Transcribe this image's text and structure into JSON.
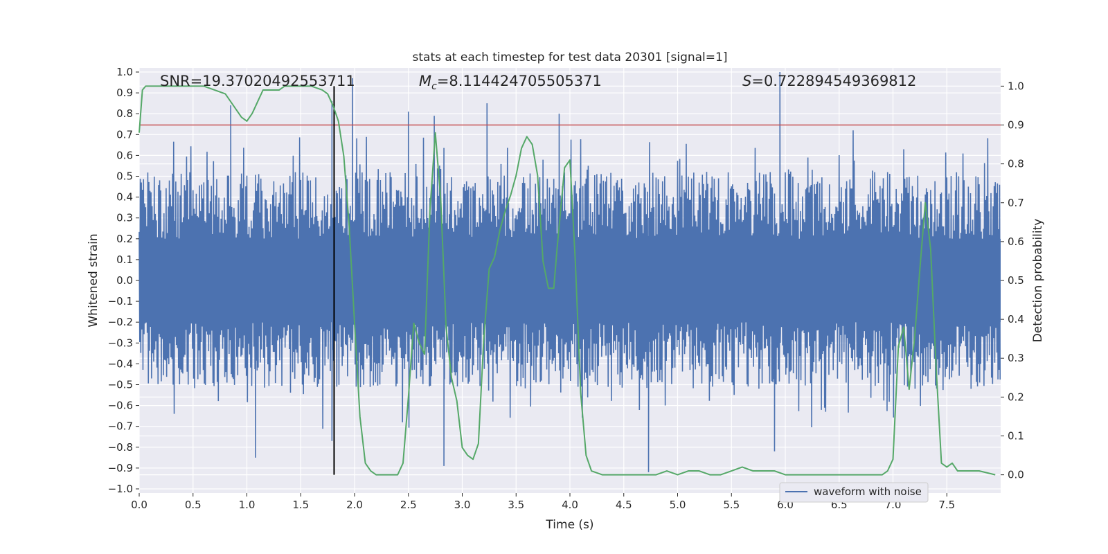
{
  "chart_data": {
    "type": "line",
    "title": "stats at each timestep for test data 20301 [signal=1]",
    "xlabel": "Time (s)",
    "ylabel": "Whitened strain",
    "y2label": "Detection probability",
    "xlim": [
      0.0,
      8.0
    ],
    "ylim": [
      -1.02,
      1.02
    ],
    "y2lim": [
      -0.047,
      1.047
    ],
    "x_ticks": [
      0.0,
      0.5,
      1.0,
      1.5,
      2.0,
      2.5,
      3.0,
      3.5,
      4.0,
      4.5,
      5.0,
      5.5,
      6.0,
      6.5,
      7.0,
      7.5
    ],
    "x_tick_labels": [
      "0.0",
      "0.5",
      "1.0",
      "1.5",
      "2.0",
      "2.5",
      "3.0",
      "3.5",
      "4.0",
      "4.5",
      "5.0",
      "5.5",
      "6.0",
      "6.5",
      "7.0",
      "7.5"
    ],
    "y_ticks": [
      1.0,
      0.9,
      0.8,
      0.7,
      0.6,
      0.5,
      0.4,
      0.3,
      0.2,
      0.1,
      0.0,
      -0.1,
      -0.2,
      -0.3,
      -0.4,
      -0.5,
      -0.6,
      -0.7,
      -0.8,
      -0.9,
      -1.0
    ],
    "y_tick_labels": [
      "1.0",
      "0.9",
      "0.8",
      "0.7",
      "0.6",
      "0.5",
      "0.4",
      "0.3",
      "0.2",
      "0.1",
      "0.0",
      "−0.1",
      "−0.2",
      "−0.3",
      "−0.4",
      "−0.5",
      "−0.6",
      "−0.7",
      "−0.8",
      "−0.9",
      "−1.0"
    ],
    "y2_ticks": [
      1.0,
      0.9,
      0.8,
      0.7,
      0.6,
      0.5,
      0.4,
      0.3,
      0.2,
      0.1,
      0.0
    ],
    "y2_tick_labels": [
      "1.0",
      "0.9",
      "0.8",
      "0.7",
      "0.6",
      "0.5",
      "0.4",
      "0.3",
      "0.2",
      "0.1",
      "0.0"
    ],
    "grid": true,
    "legend": {
      "entries": [
        "waveform with noise"
      ],
      "placement": "lower-right"
    },
    "annotations": {
      "snr_label": "SNR=19.37020492553711",
      "mc_symbol": "M",
      "mc_subscript": "c",
      "mc_value": "=8.114424705505371",
      "s_symbol": "S",
      "s_value": "=0.722894549369812"
    },
    "threshold": {
      "value": 0.9,
      "axis": "right",
      "color": "#c44e52"
    },
    "event_marker": {
      "x": 1.81,
      "y_top": 1.0,
      "y_bottom": 0.0,
      "color": "#000000"
    },
    "waveform": {
      "name": "waveform with noise",
      "color": "#4c72b0",
      "duration_s": 8.0,
      "core_amplitude": 0.2,
      "spike_peak_times": [
        0.85,
        1.79,
        1.98,
        2.5,
        2.74,
        3.23,
        3.9,
        5.95
      ],
      "spike_peak_values": [
        0.84,
        0.86,
        0.97,
        0.81,
        0.79,
        0.85,
        0.8,
        1.0
      ],
      "spike_trough_times": [
        1.08,
        1.79,
        2.83,
        4.73,
        5.9
      ],
      "spike_trough_values": [
        -0.85,
        -0.77,
        -0.89,
        -0.92,
        -0.82
      ]
    },
    "series": [
      {
        "name": "detection probability",
        "axis": "right",
        "color": "#55a868",
        "x": [
          0.0,
          0.03,
          0.06,
          0.1,
          0.2,
          0.3,
          0.4,
          0.5,
          0.6,
          0.7,
          0.8,
          0.85,
          0.9,
          0.95,
          1.0,
          1.05,
          1.1,
          1.15,
          1.2,
          1.3,
          1.35,
          1.4,
          1.5,
          1.6,
          1.7,
          1.75,
          1.8,
          1.85,
          1.9,
          1.95,
          2.0,
          2.05,
          2.1,
          2.15,
          2.2,
          2.3,
          2.4,
          2.45,
          2.5,
          2.55,
          2.6,
          2.65,
          2.7,
          2.75,
          2.8,
          2.85,
          2.9,
          2.95,
          3.0,
          3.05,
          3.1,
          3.15,
          3.2,
          3.25,
          3.3,
          3.35,
          3.4,
          3.45,
          3.5,
          3.55,
          3.6,
          3.65,
          3.7,
          3.75,
          3.8,
          3.85,
          3.88,
          3.9,
          3.95,
          4.0,
          4.05,
          4.1,
          4.15,
          4.2,
          4.3,
          4.4,
          4.5,
          4.6,
          4.7,
          4.8,
          4.9,
          5.0,
          5.1,
          5.2,
          5.3,
          5.4,
          5.5,
          5.6,
          5.7,
          5.8,
          5.9,
          6.0,
          6.2,
          6.4,
          6.6,
          6.8,
          6.9,
          6.95,
          7.0,
          7.05,
          7.1,
          7.15,
          7.2,
          7.25,
          7.3,
          7.35,
          7.4,
          7.45,
          7.5,
          7.55,
          7.6,
          7.65,
          7.7,
          7.8,
          7.95
        ],
        "y": [
          0.88,
          0.99,
          1.0,
          1.0,
          1.0,
          1.0,
          1.0,
          1.0,
          1.0,
          0.99,
          0.98,
          0.96,
          0.94,
          0.92,
          0.91,
          0.93,
          0.96,
          0.99,
          0.99,
          0.99,
          1.0,
          1.0,
          1.0,
          1.0,
          0.99,
          0.98,
          0.95,
          0.91,
          0.82,
          0.64,
          0.39,
          0.15,
          0.03,
          0.01,
          0.0,
          0.0,
          0.0,
          0.03,
          0.2,
          0.39,
          0.34,
          0.31,
          0.68,
          0.88,
          0.71,
          0.38,
          0.25,
          0.19,
          0.07,
          0.05,
          0.04,
          0.08,
          0.35,
          0.53,
          0.56,
          0.63,
          0.68,
          0.72,
          0.77,
          0.84,
          0.87,
          0.85,
          0.77,
          0.55,
          0.48,
          0.48,
          0.58,
          0.64,
          0.79,
          0.81,
          0.55,
          0.21,
          0.05,
          0.01,
          0.0,
          0.0,
          0.0,
          0.0,
          0.0,
          0.0,
          0.01,
          0.0,
          0.01,
          0.01,
          0.0,
          0.0,
          0.01,
          0.02,
          0.01,
          0.01,
          0.01,
          0.0,
          0.0,
          0.0,
          0.0,
          0.0,
          0.0,
          0.01,
          0.04,
          0.33,
          0.38,
          0.22,
          0.35,
          0.53,
          0.7,
          0.58,
          0.28,
          0.03,
          0.02,
          0.03,
          0.01,
          0.01,
          0.01,
          0.01,
          0.0
        ]
      }
    ]
  }
}
